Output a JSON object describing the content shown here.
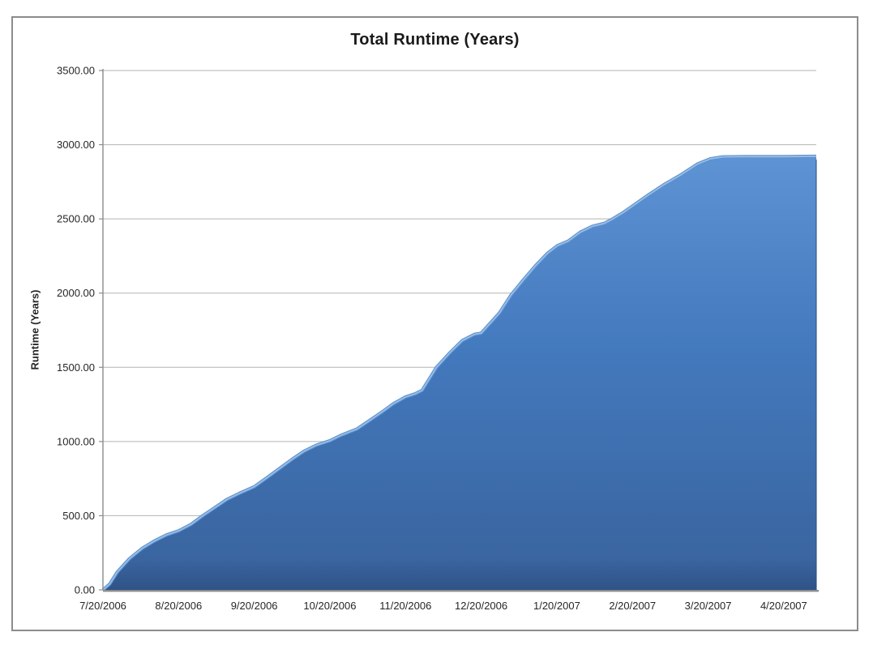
{
  "chart_title": "Total Runtime (Years)",
  "colors": {
    "area_top": "#5e93d4",
    "area_mid": "#4379bd",
    "area_bottom": "#3a65a0",
    "area_base": "#2f5386",
    "edge_mid": "#5c8ec9",
    "edge_highlight": "#93bce8",
    "gridline": "#b3b3b3",
    "axis": "#8c8c8c",
    "text": "#262626",
    "window_border": "#8c8c8c"
  },
  "chart_data": {
    "type": "area",
    "title": "Total Runtime (Years)",
    "xlabel": "",
    "ylabel": "Runtime (Years)",
    "legend": "none",
    "grid": "horizontal-only",
    "ylim": [
      0,
      3500
    ],
    "y_tick_step": 500,
    "y_tick_labels": [
      "0.00",
      "500.00",
      "1000.00",
      "1500.00",
      "2000.00",
      "2500.00",
      "3000.00",
      "3500.00"
    ],
    "x_tick_labels": [
      "7/20/2006",
      "8/20/2006",
      "9/20/2006",
      "10/20/2006",
      "11/20/2006",
      "12/20/2006",
      "1/20/2007",
      "2/20/2007",
      "3/20/2007",
      "4/20/2007"
    ],
    "x_axis_span": [
      0,
      9.43
    ],
    "x_unit": "months after 7/20/2006",
    "series": [
      {
        "name": "Total Runtime (Years)",
        "x": [
          0,
          0.09,
          0.19,
          0.35,
          0.52,
          0.68,
          0.84,
          1.0,
          1.16,
          1.32,
          1.48,
          1.64,
          1.8,
          2.0,
          2.18,
          2.34,
          2.5,
          2.66,
          2.82,
          3.0,
          3.14,
          3.36,
          3.52,
          3.68,
          3.84,
          4.0,
          4.13,
          4.22,
          4.41,
          4.59,
          4.75,
          4.91,
          5.0,
          5.24,
          5.4,
          5.56,
          5.72,
          5.88,
          6.01,
          6.15,
          6.31,
          6.47,
          6.63,
          6.74,
          6.87,
          7.01,
          7.22,
          7.43,
          7.65,
          7.86,
          8.03,
          8.19,
          8.51,
          9.0,
          9.43
        ],
        "values": [
          0,
          40,
          120,
          210,
          280,
          330,
          370,
          398,
          440,
          500,
          555,
          610,
          650,
          695,
          760,
          820,
          880,
          935,
          975,
          1005,
          1040,
          1085,
          1140,
          1195,
          1255,
          1300,
          1322,
          1345,
          1500,
          1600,
          1680,
          1722,
          1730,
          1865,
          1990,
          2090,
          2185,
          2270,
          2320,
          2350,
          2410,
          2450,
          2470,
          2500,
          2540,
          2590,
          2665,
          2735,
          2800,
          2870,
          2905,
          2918,
          2920,
          2920,
          2922
        ]
      }
    ]
  }
}
